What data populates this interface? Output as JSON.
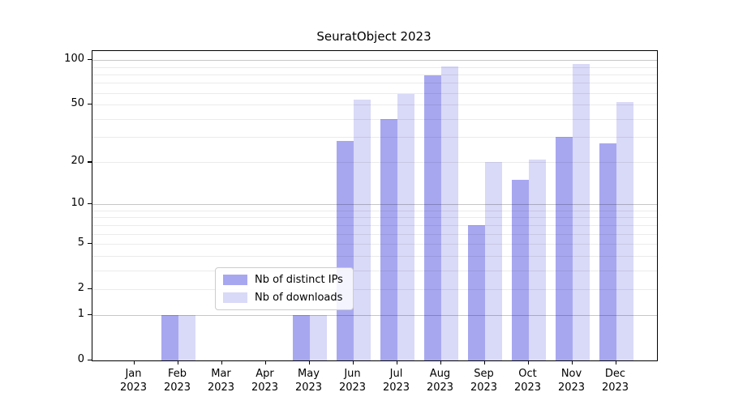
{
  "figure": {
    "title": "SeuratObject 2023",
    "background": "#ffffff"
  },
  "legend": {
    "items": [
      {
        "label": "Nb of distinct IPs",
        "color": "#a7a7f0"
      },
      {
        "label": "Nb of downloads",
        "color": "#d9d9f8"
      }
    ]
  },
  "chart_data": {
    "type": "bar",
    "title": "SeuratObject 2023",
    "categories": [
      "Jan 2023",
      "Feb 2023",
      "Mar 2023",
      "Apr 2023",
      "May 2023",
      "Jun 2023",
      "Jul 2023",
      "Aug 2023",
      "Sep 2023",
      "Oct 2023",
      "Nov 2023",
      "Dec 2023"
    ],
    "series": [
      {
        "name": "Nb of distinct IPs",
        "color": "#a7a7f0",
        "values": [
          0,
          1,
          0,
          0,
          1,
          28,
          40,
          79,
          7,
          15,
          30,
          27
        ]
      },
      {
        "name": "Nb of downloads",
        "color": "#d9d9f8",
        "values": [
          0,
          1,
          0,
          0,
          1,
          54,
          59,
          91,
          20,
          21,
          94,
          52
        ]
      }
    ],
    "xlabel": "",
    "ylabel": "",
    "yscale": "log1p",
    "ylim": [
      0,
      115
    ],
    "ytick_values": [
      0,
      1,
      2,
      5,
      10,
      20,
      50,
      100
    ],
    "ytick_labels": [
      "0",
      "1",
      "2",
      "5",
      "10",
      "20",
      "50",
      "100"
    ],
    "major_grid_values": [
      1,
      10,
      100
    ],
    "minor_grid_values": [
      2,
      3,
      4,
      5,
      6,
      7,
      8,
      9,
      20,
      30,
      40,
      50,
      60,
      70,
      80,
      90
    ],
    "grid": true,
    "legend_position": "lower center-left"
  }
}
